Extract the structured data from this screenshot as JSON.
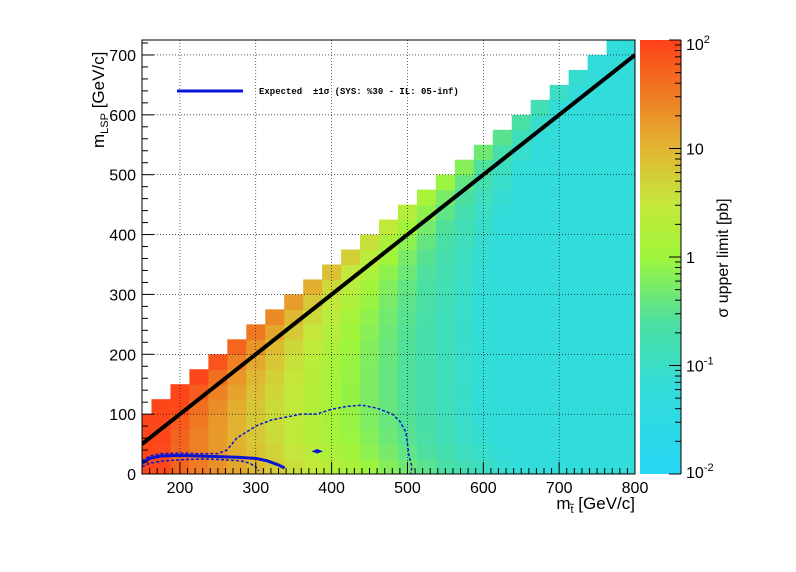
{
  "chart_data": {
    "type": "heatmap",
    "xlabel_main": "m",
    "xlabel_sub": "t̃",
    "xlabel_unit": " [GeV/c]",
    "ylabel_main": "m",
    "ylabel_sub": "LSP",
    "ylabel_unit": " [GeV/c]",
    "xlim": [
      150,
      800
    ],
    "ylim": [
      0,
      725
    ],
    "x_ticks": [
      "200",
      "300",
      "400",
      "500",
      "600",
      "700",
      "800"
    ],
    "x_tick_values": [
      200,
      300,
      400,
      500,
      600,
      700,
      800
    ],
    "y_ticks": [
      "0",
      "100",
      "200",
      "300",
      "400",
      "500",
      "600",
      "700"
    ],
    "y_tick_values": [
      0,
      100,
      200,
      300,
      400,
      500,
      600,
      700
    ],
    "grid": true,
    "cell_size": 25,
    "z_scale": "log",
    "z_range": [
      0.01,
      100
    ],
    "colorbar_label": "σ upper limit [pb]",
    "colorbar_ticks": [
      {
        "value": 100,
        "base": "10",
        "exp": "2"
      },
      {
        "value": 10,
        "base": "10",
        "exp": ""
      },
      {
        "value": 1,
        "base": "1",
        "exp": ""
      },
      {
        "value": 0.1,
        "base": "10",
        "exp": "-1"
      },
      {
        "value": 0.01,
        "base": "10",
        "exp": "-2"
      }
    ],
    "diagonal": {
      "x": [
        150,
        800
      ],
      "y": [
        50,
        700
      ]
    },
    "legend": {
      "position": "top-left",
      "entry_label": "Expected  ±1σ (SYS: %30 - IL: 05-inf)"
    },
    "expected_contour": {
      "x": [
        150,
        160,
        175,
        200,
        225,
        250,
        275,
        300,
        315,
        330,
        338
      ],
      "y": [
        18,
        26,
        30,
        31,
        30,
        29,
        28,
        26,
        22,
        15,
        10
      ]
    },
    "plus_one_sigma_contour": {
      "x": [
        150,
        160,
        180,
        205,
        230,
        255,
        280,
        292,
        300,
        304
      ],
      "y": [
        12,
        18,
        22,
        24,
        25,
        24,
        22,
        18,
        12,
        5
      ]
    },
    "minus_one_sigma_contour": {
      "x": [
        150,
        160,
        175,
        200,
        225,
        250,
        262,
        275,
        300,
        320,
        340,
        360,
        380,
        400,
        420,
        440,
        460,
        480,
        490,
        498,
        500,
        502,
        506,
        504
      ],
      "y": [
        22,
        30,
        34,
        35,
        34,
        34,
        40,
        60,
        80,
        90,
        95,
        100,
        100,
        108,
        113,
        115,
        110,
        100,
        88,
        70,
        50,
        30,
        12,
        0
      ]
    },
    "island_contour": {
      "x": [
        377,
        381,
        385,
        381,
        377
      ],
      "y": [
        38,
        40,
        38,
        36,
        38
      ]
    }
  }
}
